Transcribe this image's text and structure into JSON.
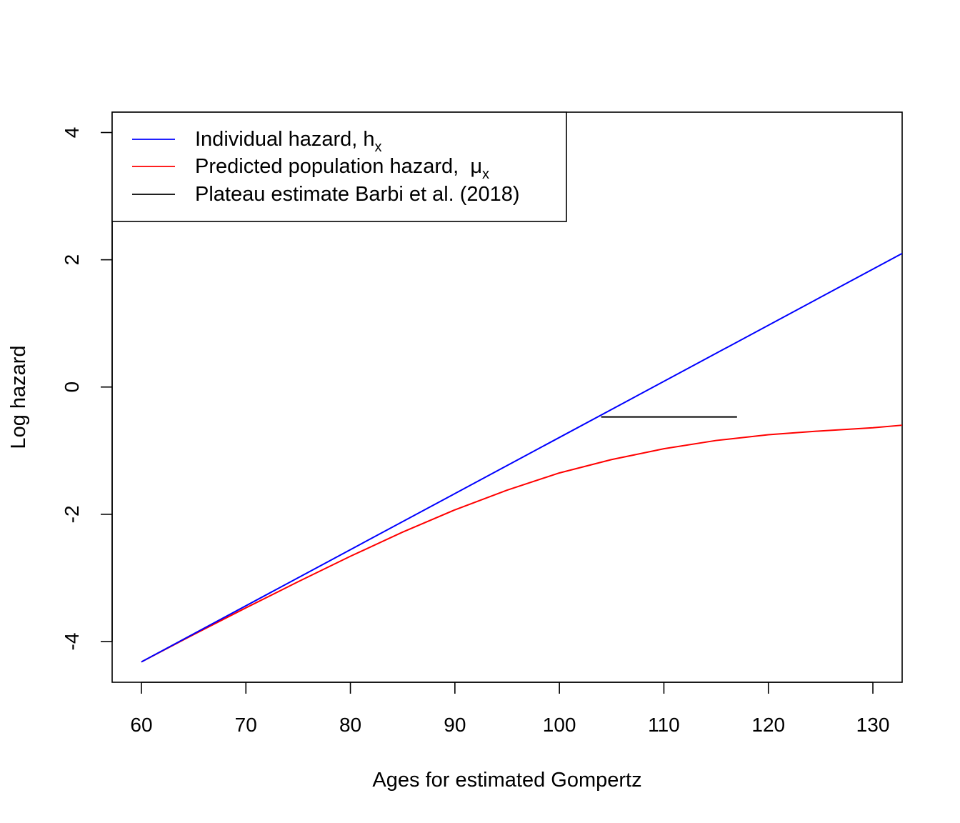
{
  "chart_data": {
    "type": "line",
    "title": "",
    "xlabel": "Ages for estimated Gompertz",
    "ylabel": "Log hazard",
    "xlim": [
      57.2,
      132.8
    ],
    "ylim": [
      -4.64,
      4.32
    ],
    "x_ticks": [
      60,
      70,
      80,
      90,
      100,
      110,
      120,
      130
    ],
    "y_ticks": [
      -4,
      -2,
      0,
      2,
      4
    ],
    "x_tick_labels": [
      "60",
      "70",
      "80",
      "90",
      "100",
      "110",
      "120",
      "130"
    ],
    "y_tick_labels": [
      "-4",
      "-2",
      "0",
      "2",
      "4"
    ],
    "grid": false,
    "legend_position": "top-left",
    "series": [
      {
        "name": "Individual hazard,",
        "symbol": "h",
        "subscript": "x",
        "color": "#0000ff",
        "x": [
          60,
          132.8
        ],
        "y": [
          -4.32,
          2.1
        ]
      },
      {
        "name": "Predicted population hazard,",
        "symbol": "μ",
        "subscript": "x",
        "color": "#ff0000",
        "x": [
          60,
          65,
          70,
          75,
          80,
          85,
          90,
          95,
          100,
          105,
          110,
          115,
          120,
          125,
          130,
          132.8
        ],
        "y": [
          -4.32,
          -3.89,
          -3.47,
          -3.06,
          -2.66,
          -2.28,
          -1.93,
          -1.62,
          -1.35,
          -1.14,
          -0.97,
          -0.84,
          -0.75,
          -0.69,
          -0.64,
          -0.6
        ]
      },
      {
        "name": "Plateau estimate Barbi et al. (2018)",
        "symbol": "",
        "subscript": "",
        "color": "#000000",
        "x": [
          104,
          117
        ],
        "y": [
          -0.47,
          -0.47
        ]
      }
    ]
  }
}
